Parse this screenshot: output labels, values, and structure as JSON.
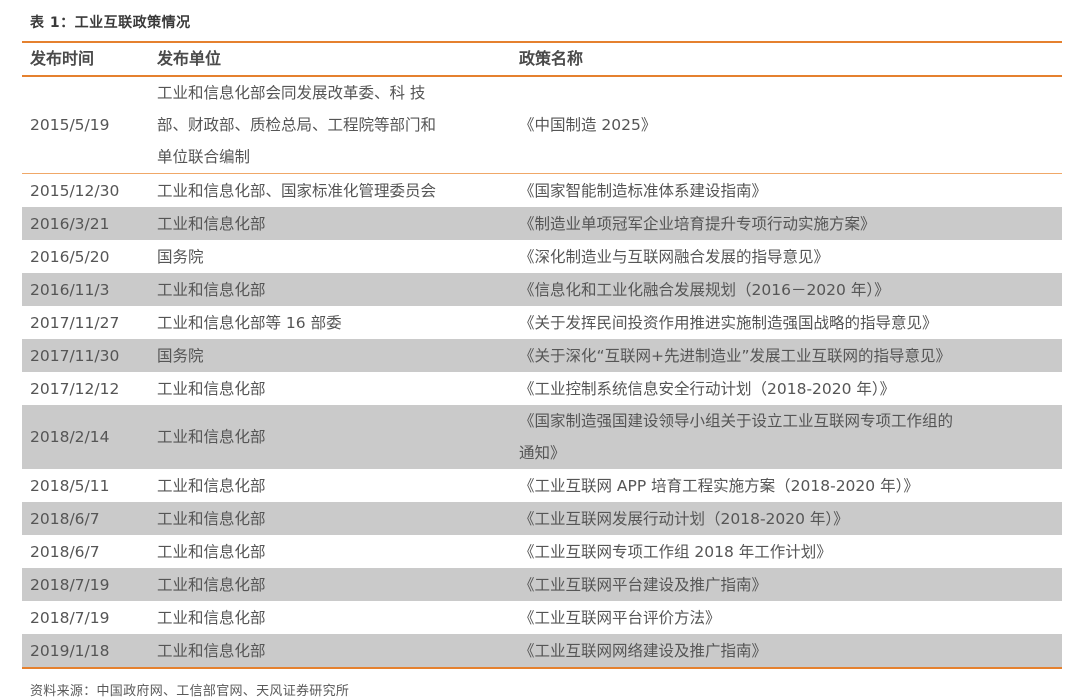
{
  "table": {
    "title": "表 1：工业互联政策情况",
    "columns": [
      "发布时间",
      "发布单位",
      "政策名称"
    ],
    "rows": [
      {
        "date": "2015/5/19",
        "unit": "工业和信息化部会同发展改革委、科 技\n部、财政部、质检总局、工程院等部门和\n单位联合编制",
        "policy": "《中国制造 2025》",
        "shaded": false,
        "divider": true
      },
      {
        "date": "2015/12/30",
        "unit": "工业和信息化部、国家标准化管理委员会",
        "policy": "《国家智能制造标准体系建设指南》",
        "shaded": false,
        "divider": false
      },
      {
        "date": "2016/3/21",
        "unit": "工业和信息化部",
        "policy": "《制造业单项冠军企业培育提升专项行动实施方案》",
        "shaded": true,
        "divider": false
      },
      {
        "date": "2016/5/20",
        "unit": "国务院",
        "policy": "《深化制造业与互联网融合发展的指导意见》",
        "shaded": false,
        "divider": false
      },
      {
        "date": "2016/11/3",
        "unit": "工业和信息化部",
        "policy": "《信息化和工业化融合发展规划（2016－2020 年）》",
        "shaded": true,
        "divider": false
      },
      {
        "date": "2017/11/27",
        "unit": "工业和信息化部等 16 部委",
        "policy": "《关于发挥民间投资作用推进实施制造强国战略的指导意见》",
        "shaded": false,
        "divider": false
      },
      {
        "date": "2017/11/30",
        "unit": "国务院",
        "policy": "《关于深化“互联网+先进制造业”发展工业互联网的指导意见》",
        "shaded": true,
        "divider": false
      },
      {
        "date": "2017/12/12",
        "unit": "工业和信息化部",
        "policy": "《工业控制系统信息安全行动计划（2018-2020 年）》",
        "shaded": false,
        "divider": false
      },
      {
        "date": "2018/2/14",
        "unit": "工业和信息化部",
        "policy": "《国家制造强国建设领导小组关于设立工业互联网专项工作组的\n通知》",
        "shaded": true,
        "divider": false
      },
      {
        "date": "2018/5/11",
        "unit": "工业和信息化部",
        "policy": "《工业互联网 APP 培育工程实施方案（2018-2020 年）》",
        "shaded": false,
        "divider": false
      },
      {
        "date": "2018/6/7",
        "unit": "工业和信息化部",
        "policy": "《工业互联网发展行动计划（2018-2020 年）》",
        "shaded": true,
        "divider": false
      },
      {
        "date": "2018/6/7",
        "unit": "工业和信息化部",
        "policy": "《工业互联网专项工作组 2018 年工作计划》",
        "shaded": false,
        "divider": false
      },
      {
        "date": "2018/7/19",
        "unit": "工业和信息化部",
        "policy": "《工业互联网平台建设及推广指南》",
        "shaded": true,
        "divider": false
      },
      {
        "date": "2018/7/19",
        "unit": "工业和信息化部",
        "policy": "《工业互联网平台评价方法》",
        "shaded": false,
        "divider": false
      },
      {
        "date": "2019/1/18",
        "unit": "工业和信息化部",
        "policy": "《工业互联网网络建设及推广指南》",
        "shaded": true,
        "divider": false
      }
    ],
    "source": "资料来源：中国政府网、工信部官网、天风证券研究所"
  },
  "colors": {
    "accent": "#E5812F",
    "thin_divider": "#F0A868",
    "row_shade": "#CACACA",
    "body_text": "#555555",
    "header_text": "#4A4A4A",
    "title_text": "#3A3A3A"
  }
}
